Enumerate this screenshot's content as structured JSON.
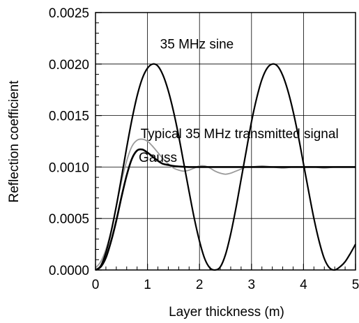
{
  "chart_data": {
    "type": "line",
    "xlabel": "Layer thickness (m)",
    "ylabel": "Reflection coefficient",
    "xlim": [
      0,
      5
    ],
    "ylim": [
      0,
      0.0025
    ],
    "x_ticks": [
      {
        "value": 0,
        "label": "0"
      },
      {
        "value": 1,
        "label": "1"
      },
      {
        "value": 2,
        "label": "2"
      },
      {
        "value": 3,
        "label": "3"
      },
      {
        "value": 4,
        "label": "4"
      },
      {
        "value": 5,
        "label": "5"
      }
    ],
    "y_ticks": [
      {
        "value": 0,
        "label": "0.0000"
      },
      {
        "value": 0.0005,
        "label": "0.0005"
      },
      {
        "value": 0.001,
        "label": "0.0010"
      },
      {
        "value": 0.0015,
        "label": "0.0015"
      },
      {
        "value": 0.002,
        "label": "0.0020"
      },
      {
        "value": 0.0025,
        "label": "0.0025"
      }
    ],
    "grid": true,
    "series": [
      {
        "name": "35 MHz sine",
        "color": "#000000",
        "x": [
          0,
          0.1,
          0.2,
          0.3,
          0.4,
          0.5,
          0.6,
          0.7,
          0.8,
          0.9,
          1.0,
          1.1,
          1.2,
          1.3,
          1.4,
          1.5,
          1.6,
          1.7,
          1.8,
          1.9,
          2.0,
          2.1,
          2.2,
          2.3,
          2.4,
          2.5,
          2.6,
          2.7,
          2.8,
          2.9,
          3.0,
          3.1,
          3.2,
          3.3,
          3.4,
          3.5,
          3.6,
          3.7,
          3.8,
          3.9,
          4.0,
          4.1,
          4.2,
          4.3,
          4.4,
          4.5,
          4.6,
          4.7,
          4.8,
          4.9,
          5.0
        ],
        "y": [
          0,
          4e-05,
          0.00017,
          0.00037,
          0.00062,
          0.0009,
          0.00119,
          0.00146,
          0.00169,
          0.00186,
          0.00196,
          0.002,
          0.00198,
          0.00189,
          0.00174,
          0.00154,
          0.0013,
          0.00103,
          0.00076,
          0.0005,
          0.00028,
          0.00011,
          2e-05,
          0.0,
          3e-05,
          0.00015,
          0.00035,
          0.0006,
          0.00088,
          0.00116,
          0.00144,
          0.00167,
          0.00185,
          0.00196,
          0.002,
          0.00198,
          0.00189,
          0.00174,
          0.00154,
          0.0013,
          0.00103,
          0.00076,
          0.0005,
          0.00028,
          0.00011,
          2e-05,
          0.0,
          3e-05,
          8e-05,
          0.00016,
          0.00025
        ]
      },
      {
        "name": "Gauss",
        "color": "#000000",
        "x": [
          0,
          0.1,
          0.2,
          0.3,
          0.4,
          0.5,
          0.6,
          0.7,
          0.8,
          0.9,
          1.0,
          1.1,
          1.2,
          1.3,
          1.4,
          1.5,
          1.6,
          1.8,
          2.0,
          2.5,
          3.0,
          3.5,
          4.0,
          4.5,
          5.0
        ],
        "y": [
          0,
          3e-05,
          0.00012,
          0.00028,
          0.00048,
          0.00071,
          0.00092,
          0.00108,
          0.00116,
          0.00117,
          0.00114,
          0.0011,
          0.00106,
          0.00103,
          0.00102,
          0.00101,
          0.001005,
          0.001,
          0.001,
          0.001,
          0.001,
          0.001,
          0.001,
          0.001,
          0.001
        ]
      },
      {
        "name": "Typical 35 MHz transmitted signal",
        "color": "#9a9a9a",
        "x": [
          0,
          0.1,
          0.2,
          0.3,
          0.4,
          0.5,
          0.6,
          0.7,
          0.8,
          0.9,
          1.0,
          1.1,
          1.2,
          1.3,
          1.4,
          1.5,
          1.6,
          1.7,
          1.8,
          1.9,
          2.0,
          2.1,
          2.2,
          2.3,
          2.4,
          2.5,
          2.6,
          2.7,
          2.8,
          2.9,
          3.0,
          3.2,
          3.4,
          3.6,
          3.8,
          4.0,
          4.2,
          4.4,
          4.6,
          4.8,
          5.0
        ],
        "y": [
          2e-05,
          8e-05,
          0.0002,
          0.00038,
          0.00062,
          0.00086,
          0.00106,
          0.0012,
          0.00126,
          0.00127,
          0.00125,
          0.0012,
          0.00114,
          0.00108,
          0.00103,
          0.00099,
          0.00097,
          0.00096,
          0.00097,
          0.00099,
          0.00101,
          0.00101,
          0.00099,
          0.00096,
          0.00094,
          0.00093,
          0.00094,
          0.00096,
          0.00098,
          0.001,
          0.001,
          0.00101,
          0.001,
          0.00099,
          0.001,
          0.001,
          0.001,
          0.00099,
          0.001,
          0.001,
          0.001
        ]
      }
    ],
    "annotations": [
      {
        "text": "35 MHz sine",
        "x": 1.95,
        "y": 0.00215
      },
      {
        "text": "Typical 35 MHz transmitted signal",
        "x": 2.77,
        "y": 0.00128
      },
      {
        "text": "Gauss",
        "x": 1.2,
        "y": 0.00105
      }
    ]
  }
}
